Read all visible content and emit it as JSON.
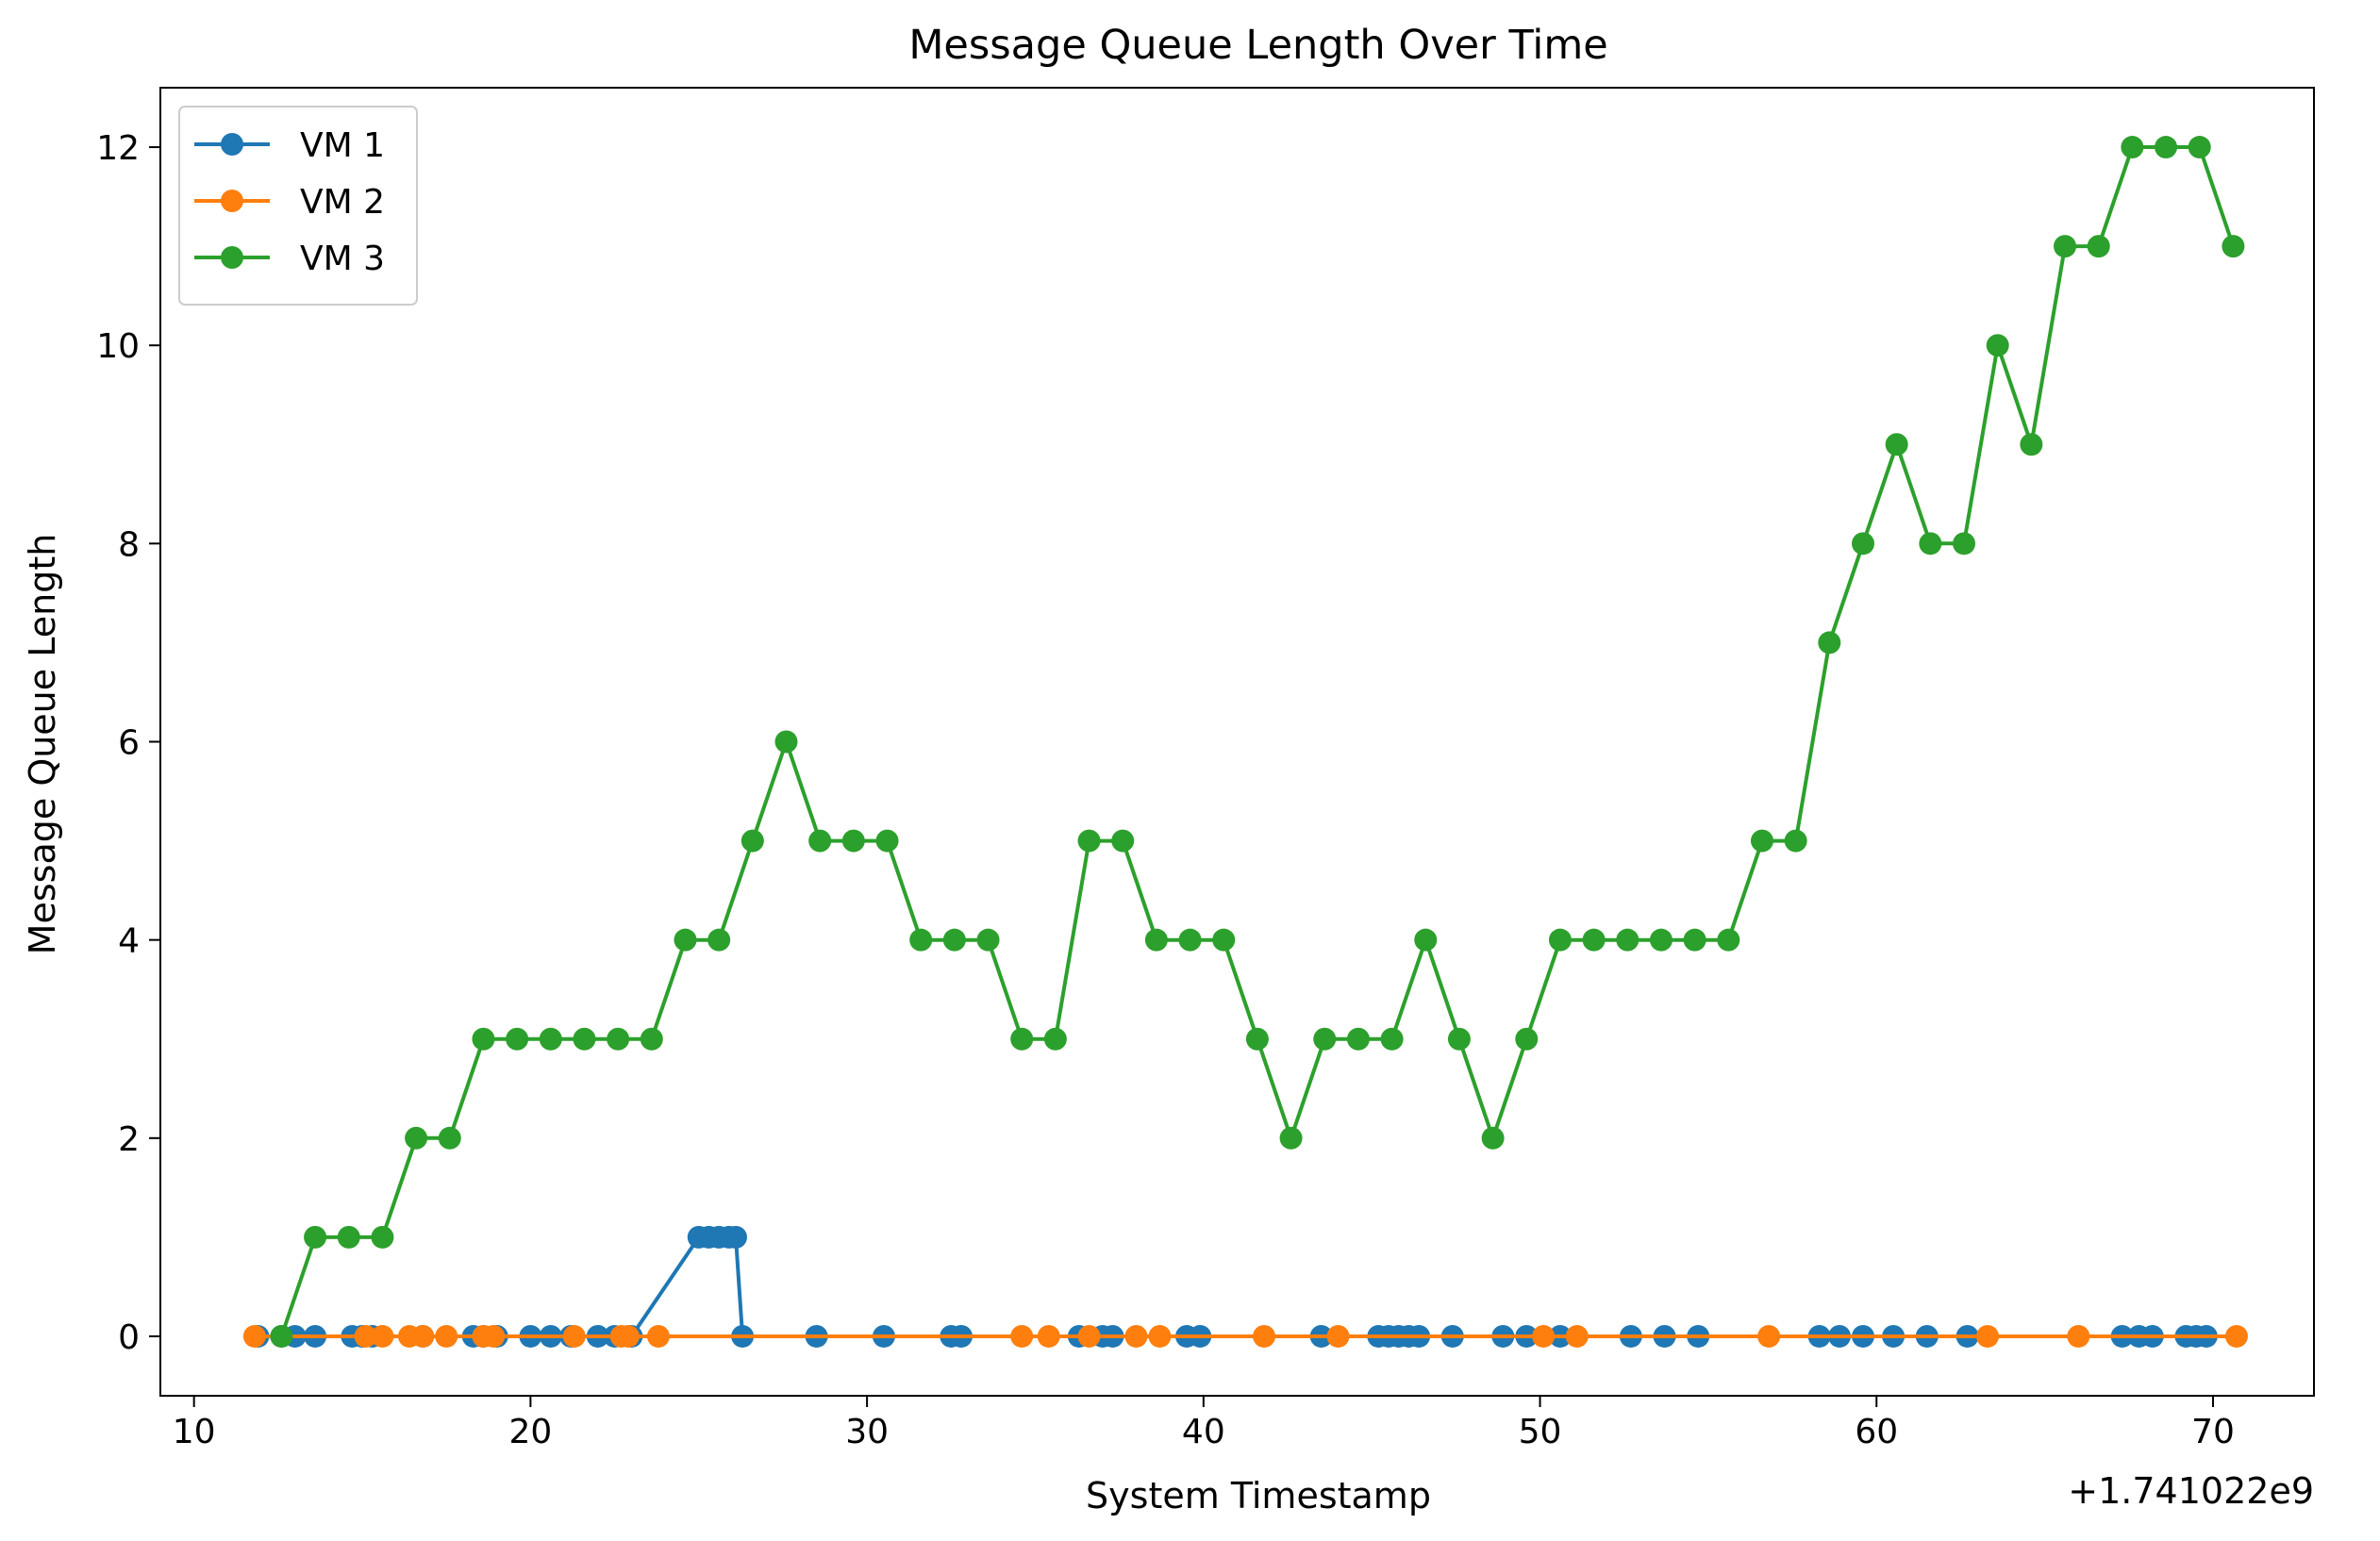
{
  "chart_data": {
    "type": "line",
    "title": "Message Queue Length Over Time",
    "xlabel": "System Timestamp",
    "ylabel": "Message Queue Length",
    "x_offset_label": "+1.741022e9",
    "xlim": [
      9.0,
      73.0
    ],
    "ylim": [
      -0.6,
      12.6
    ],
    "xticks": [
      10,
      20,
      30,
      40,
      50,
      60,
      70
    ],
    "yticks": [
      0,
      2,
      4,
      6,
      8,
      10,
      12
    ],
    "grid": false,
    "legend_position": "top-left",
    "series": [
      {
        "name": "VM 1",
        "color": "#1f77b4",
        "x": [
          11.9,
          12.6,
          13.0,
          13.6,
          14.7,
          15.0,
          15.3,
          16.8,
          18.3,
          18.6,
          19.0,
          20.0,
          20.6,
          21.2,
          22.0,
          22.5,
          23.0,
          25.0,
          25.3,
          25.6,
          25.9,
          26.1,
          26.3,
          28.5,
          30.5,
          32.5,
          32.8,
          36.3,
          37.0,
          37.3,
          39.5,
          39.9,
          43.5,
          45.2,
          45.5,
          45.8,
          46.1,
          46.4,
          47.4,
          48.9,
          49.6,
          50.6,
          52.7,
          53.7,
          54.7,
          58.3,
          58.9,
          59.6,
          60.5,
          61.5,
          62.7,
          67.3,
          67.8,
          68.2,
          69.2,
          69.5,
          69.8
        ],
        "values": [
          0,
          0,
          0,
          0,
          0,
          0,
          0,
          0,
          0,
          0,
          0,
          0,
          0,
          0,
          0,
          0,
          0,
          1,
          1,
          1,
          1,
          1,
          0,
          0,
          0,
          0,
          0,
          0,
          0,
          0,
          0,
          0,
          0,
          0,
          0,
          0,
          0,
          0,
          0,
          0,
          0,
          0,
          0,
          0,
          0,
          0,
          0,
          0,
          0,
          0,
          0,
          0,
          0,
          0,
          0,
          0,
          0
        ]
      },
      {
        "name": "VM 2",
        "color": "#ff7f0e",
        "x": [
          11.8,
          15.1,
          15.6,
          16.4,
          16.8,
          17.5,
          18.6,
          18.9,
          21.3,
          22.7,
          22.9,
          23.8,
          34.6,
          35.4,
          36.6,
          38.0,
          38.7,
          41.8,
          44.0,
          50.1,
          51.1,
          56.8,
          63.3,
          66.0,
          70.7
        ],
        "values": [
          0,
          0,
          0,
          0,
          0,
          0,
          0,
          0,
          0,
          0,
          0,
          0,
          0,
          0,
          0,
          0,
          0,
          0,
          0,
          0,
          0,
          0,
          0,
          0,
          0
        ]
      },
      {
        "name": "VM 3",
        "color": "#2ca02c",
        "x": [
          12.6,
          13.6,
          14.6,
          15.6,
          16.6,
          17.6,
          18.6,
          19.6,
          20.6,
          21.6,
          22.6,
          23.6,
          24.6,
          25.6,
          26.6,
          27.6,
          28.6,
          29.6,
          30.6,
          31.6,
          32.6,
          33.6,
          34.6,
          35.6,
          36.6,
          37.6,
          38.6,
          39.6,
          40.6,
          41.6,
          42.6,
          43.6,
          44.6,
          45.6,
          46.6,
          47.6,
          48.6,
          49.6,
          50.6,
          51.6,
          52.6,
          53.6,
          54.6,
          55.6,
          56.6,
          57.6,
          58.6,
          59.6,
          60.6,
          61.6,
          62.6,
          63.6,
          64.6,
          65.6,
          66.6,
          67.6,
          68.6,
          69.6,
          70.6
        ],
        "values": [
          0,
          1,
          1,
          1,
          2,
          2,
          3,
          3,
          3,
          3,
          3,
          3,
          4,
          4,
          5,
          6,
          5,
          5,
          5,
          4,
          4,
          4,
          3,
          3,
          5,
          5,
          4,
          4,
          4,
          3,
          2,
          3,
          3,
          3,
          4,
          3,
          2,
          3,
          4,
          4,
          4,
          4,
          4,
          4,
          5,
          5,
          7,
          8,
          9,
          8,
          8,
          10,
          9,
          11,
          11,
          12,
          12,
          12,
          11
        ]
      }
    ]
  }
}
